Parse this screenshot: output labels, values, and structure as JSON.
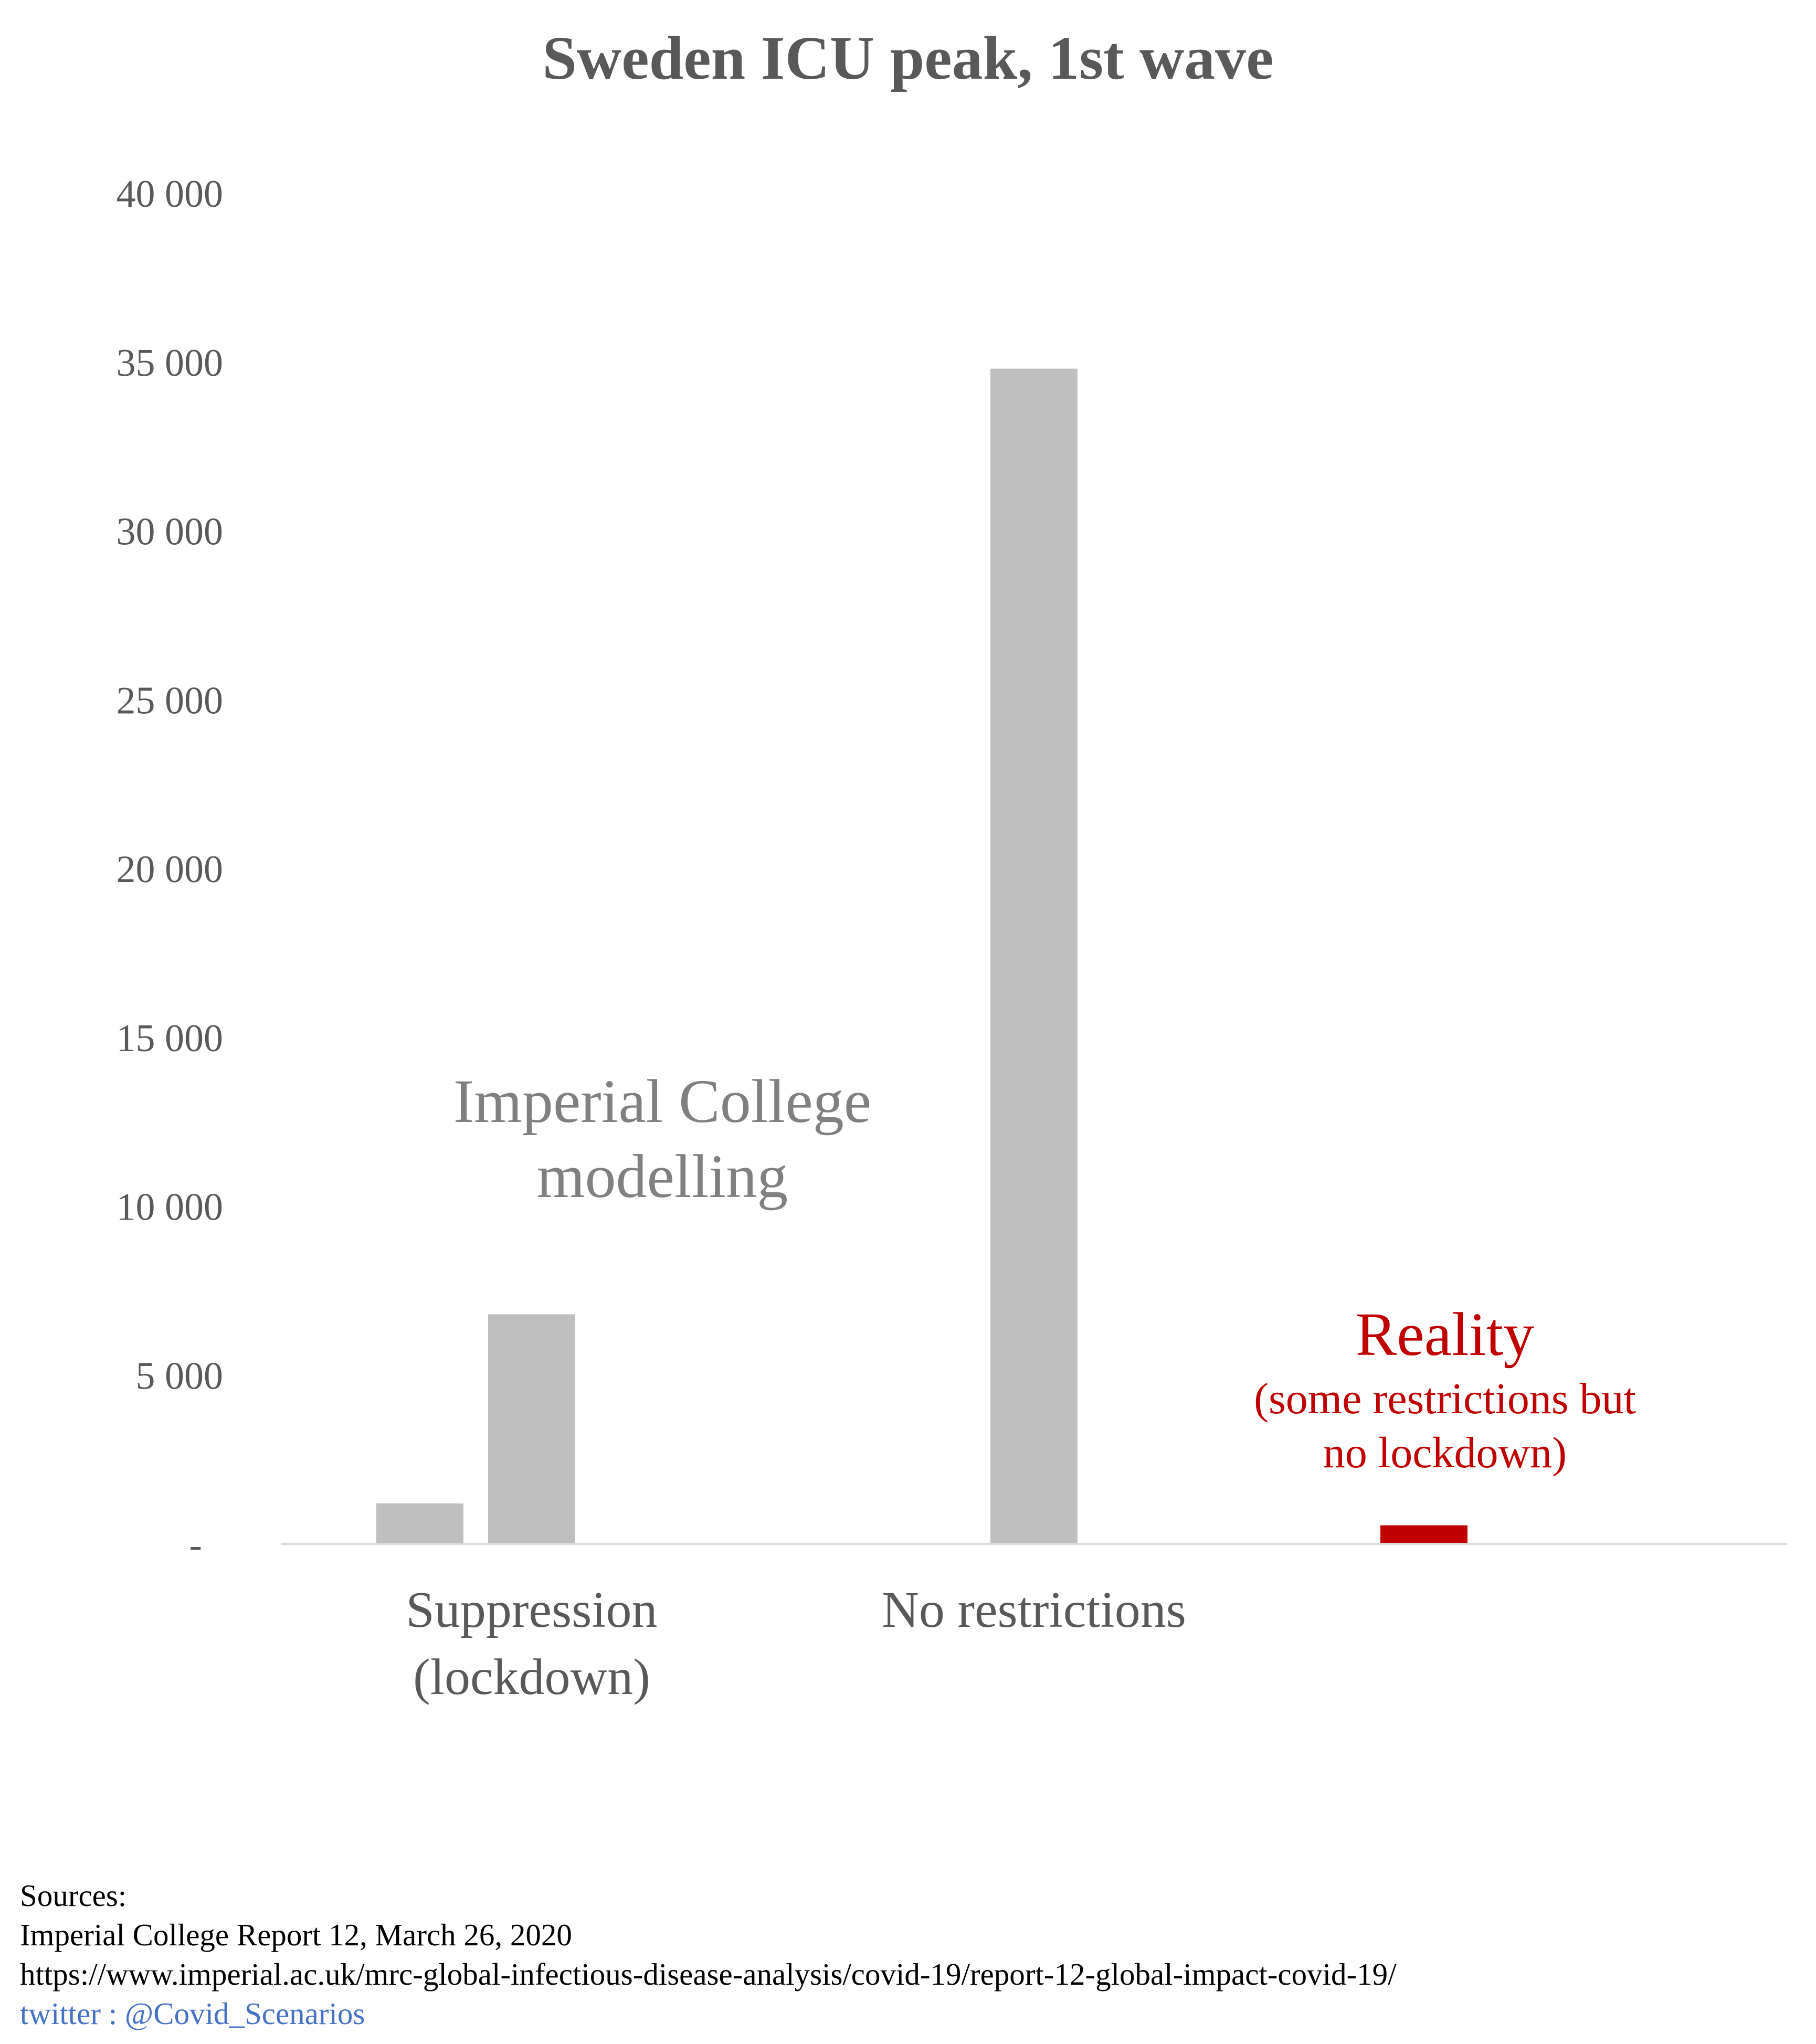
{
  "chart_data": {
    "type": "bar",
    "title": "Sweden ICU peak, 1st wave",
    "ylim": [
      0,
      40000
    ],
    "y_ticks": [
      "-",
      "5 000",
      "10 000",
      "15 000",
      "20 000",
      "25 000",
      "30 000",
      "35 000",
      "40 000"
    ],
    "y_tick_values": [
      0,
      5000,
      10000,
      15000,
      20000,
      25000,
      30000,
      35000,
      40000
    ],
    "grid": false,
    "categories": [
      "Suppression\n(lockdown)",
      "No restrictions",
      ""
    ],
    "category_labels": [
      [
        "Suppression",
        "(lockdown)"
      ],
      [
        "No restrictions"
      ],
      []
    ],
    "bars": [
      {
        "category_index": 0,
        "value": 1200,
        "color": "#bfbfbf"
      },
      {
        "category_index": 0,
        "value": 6800,
        "color": "#bfbfbf"
      },
      {
        "category_index": 1,
        "value": 34800,
        "color": "#bfbfbf"
      },
      {
        "category_index": 2,
        "value": 550,
        "color": "#c00000"
      }
    ],
    "annotations": {
      "imperial": [
        "Imperial College",
        "modelling"
      ],
      "reality_title": "Reality",
      "reality_sub": [
        "(some restrictions but",
        "no lockdown)"
      ]
    },
    "colors": {
      "model": "#bfbfbf",
      "reality": "#c00000",
      "axis_text": "#595959",
      "annotation_grey": "#808080",
      "axis_line": "#d9d9d9"
    }
  },
  "sources": {
    "heading": "Sources:",
    "line1": "Imperial College Report 12, March 26, 2020",
    "line2": "https://www.imperial.ac.uk/mrc-global-infectious-disease-analysis/covid-19/report-12-global-impact-covid-19/",
    "twitter": "twitter : @Covid_Scenarios"
  }
}
